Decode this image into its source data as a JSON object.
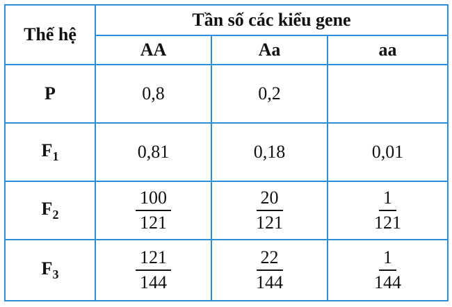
{
  "table": {
    "header": {
      "generation": "Thế hệ",
      "group": "Tần số các kiểu gene",
      "genotypes": [
        "AA",
        "Aa",
        "aa"
      ]
    },
    "rows": [
      {
        "label": {
          "base": "P"
        },
        "cells": [
          "0,8",
          "0,2"
        ]
      },
      {
        "label": {
          "base": "F",
          "sub": "1"
        },
        "cells": [
          "0,81",
          "0,18",
          "0,01"
        ]
      },
      {
        "label": {
          "base": "F",
          "sub": "2"
        },
        "cells": [
          {
            "num": "100",
            "den": "121"
          },
          {
            "num": "20",
            "den": "121"
          },
          {
            "num": "1",
            "den": "121"
          }
        ]
      },
      {
        "label": {
          "base": "F",
          "sub": "3"
        },
        "cells": [
          {
            "num": "121",
            "den": "144"
          },
          {
            "num": "22",
            "den": "144"
          },
          {
            "num": "1",
            "den": "144"
          }
        ]
      }
    ]
  }
}
